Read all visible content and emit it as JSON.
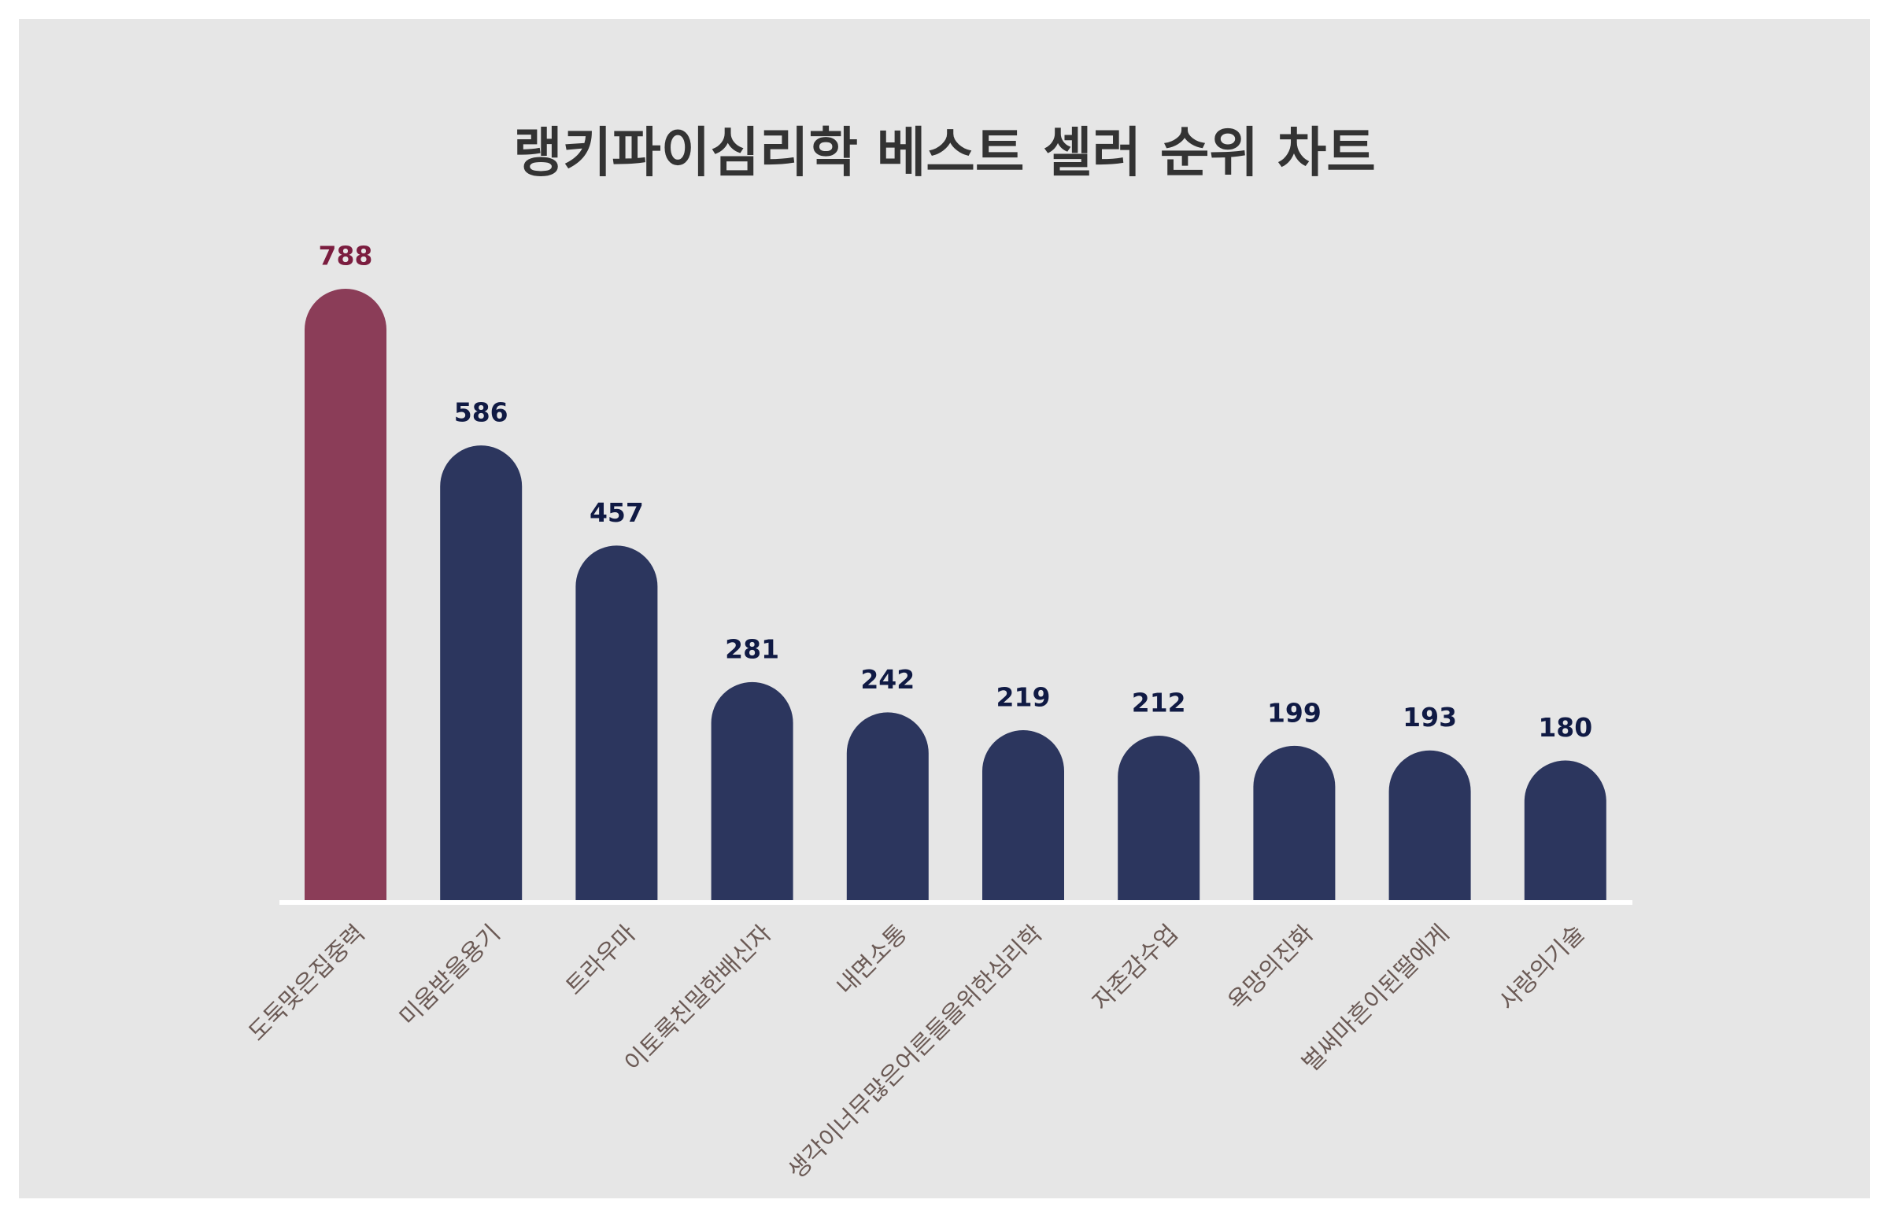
{
  "chart_data": {
    "type": "bar",
    "title": "랭키파이심리학 베스트 셀러 순위 차트",
    "categories": [
      "도둑맞은집중력",
      "미움받을용기",
      "트라우마",
      "이토록친밀한배신자",
      "내면소통",
      "생각이너무많은어른들을위한심리학",
      "자존감수업",
      "욕망의진화",
      "벌써마흔이된딸에게",
      "사랑의기술"
    ],
    "values": [
      788,
      586,
      457,
      281,
      242,
      219,
      212,
      199,
      193,
      180
    ],
    "colors": [
      "#8b3d58",
      "#2c365e",
      "#2c365e",
      "#2c365e",
      "#2c365e",
      "#2c365e",
      "#2c365e",
      "#2c365e",
      "#2c365e",
      "#2c365e"
    ],
    "label_colors": [
      "#7b1d3f",
      "#101a44",
      "#101a44",
      "#101a44",
      "#101a44",
      "#101a44",
      "#101a44",
      "#101a44",
      "#101a44",
      "#101a44"
    ]
  }
}
